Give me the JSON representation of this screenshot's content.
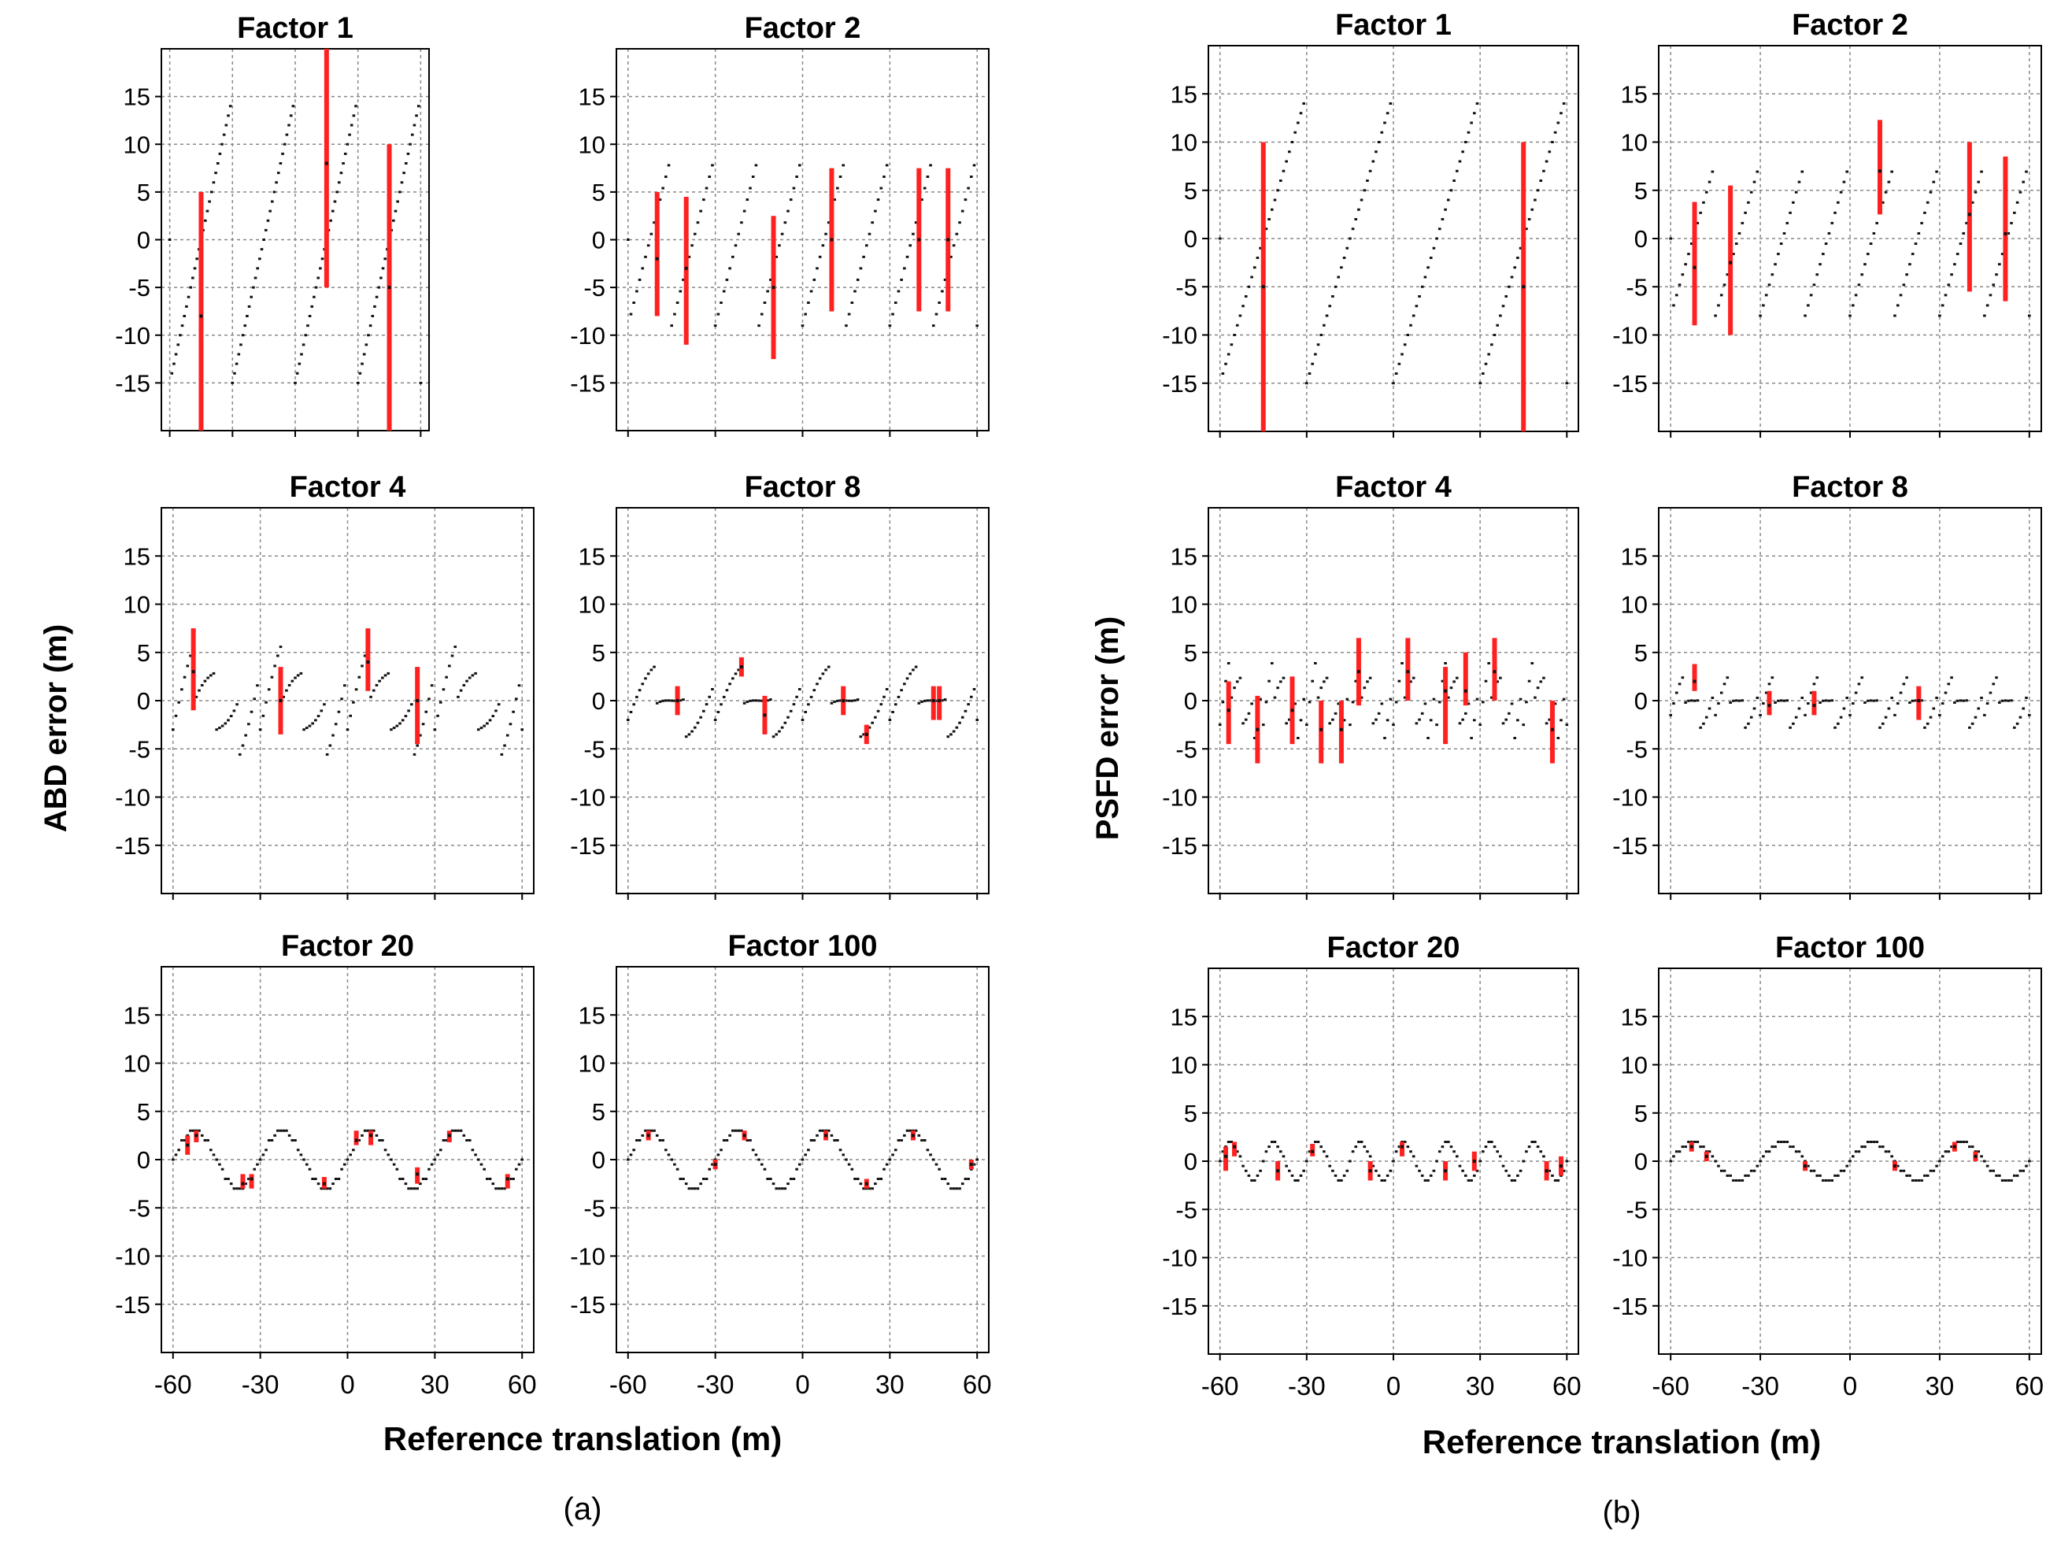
{
  "figure": {
    "panel_labels": [
      "(a)",
      "(b)"
    ],
    "group_ylabels": [
      "ABD error  (m)",
      "PSFD error (m)"
    ],
    "xlabel": "Reference translation (m)",
    "colors": {
      "baseline": "#111111",
      "error_bar": "#ff2020",
      "grid": "#888888",
      "axis": "#000000"
    }
  },
  "chart_data": [
    {
      "id": "a-f1",
      "group": "a",
      "type": "scatter",
      "title": "Factor   1",
      "factor": 1,
      "amplitude": 15,
      "period": 30,
      "phase": 0,
      "xlim": [
        -64,
        64
      ],
      "ylim": [
        -20,
        20
      ],
      "xticks": [
        -60,
        -30,
        0,
        30,
        60
      ],
      "yticks": [
        15,
        10,
        5,
        0,
        -5,
        -10,
        -15
      ],
      "error_bars": [
        {
          "x": -45,
          "y": -8,
          "low": -20,
          "high": 5
        },
        {
          "x": 15,
          "y": 8,
          "low": -5,
          "high": 20
        },
        {
          "x": 45,
          "y": -5,
          "low": -20,
          "high": 10
        }
      ]
    },
    {
      "id": "a-f2",
      "group": "a",
      "type": "scatter",
      "title": "Factor   2",
      "factor": 2,
      "amplitude": 9,
      "period": 15,
      "phase": 0,
      "xlim": [
        -64,
        64
      ],
      "ylim": [
        -20,
        20
      ],
      "xticks": [
        -60,
        -30,
        0,
        30,
        60
      ],
      "yticks": [
        15,
        10,
        5,
        0,
        -5,
        -10,
        -15
      ],
      "error_bars": [
        {
          "x": -50,
          "y": -2,
          "low": -8,
          "high": 5
        },
        {
          "x": -40,
          "y": -3,
          "low": -11,
          "high": 4.5
        },
        {
          "x": -10,
          "y": -5,
          "low": -12.5,
          "high": 2.5
        },
        {
          "x": 10,
          "y": 0,
          "low": -7.5,
          "high": 7.5
        },
        {
          "x": 40,
          "y": 0,
          "low": -7.5,
          "high": 7.5
        },
        {
          "x": 50,
          "y": 0,
          "low": -7.5,
          "high": 7.5
        }
      ]
    },
    {
      "id": "a-f4",
      "group": "a",
      "type": "scatter",
      "title": "Factor   4",
      "factor": 4,
      "amplitude": 6,
      "period": 30,
      "phase": 0,
      "xlim": [
        -64,
        64
      ],
      "ylim": [
        -20,
        20
      ],
      "xticks": [
        -60,
        -30,
        0,
        30,
        60
      ],
      "yticks": [
        15,
        10,
        5,
        0,
        -5,
        -10,
        -15
      ],
      "error_bars": [
        {
          "x": -53,
          "y": 3,
          "low": -1,
          "high": 7.5
        },
        {
          "x": -23,
          "y": 0,
          "low": -3.5,
          "high": 3.5
        },
        {
          "x": 7,
          "y": 4,
          "low": 1,
          "high": 7.5
        },
        {
          "x": 24,
          "y": 0,
          "low": -4.5,
          "high": 3.5
        }
      ]
    },
    {
      "id": "a-f8",
      "group": "a",
      "type": "scatter",
      "title": "Factor   8",
      "factor": 8,
      "amplitude": 4,
      "period": 30,
      "phase": 0,
      "xlim": [
        -64,
        64
      ],
      "ylim": [
        -20,
        20
      ],
      "xticks": [
        -60,
        -30,
        0,
        30,
        60
      ],
      "yticks": [
        15,
        10,
        5,
        0,
        -5,
        -10,
        -15
      ],
      "error_bars": [
        {
          "x": -43,
          "y": 0,
          "low": -1.5,
          "high": 1.5
        },
        {
          "x": -21,
          "y": 3.5,
          "low": 2.5,
          "high": 4.5
        },
        {
          "x": -13,
          "y": -1.5,
          "low": -3.5,
          "high": 0.5
        },
        {
          "x": 14,
          "y": 0,
          "low": -1.5,
          "high": 1.5
        },
        {
          "x": 22,
          "y": -3.5,
          "low": -4.5,
          "high": -2.5
        },
        {
          "x": 45,
          "y": 0,
          "low": -2,
          "high": 1.5
        },
        {
          "x": 47,
          "y": 0,
          "low": -2,
          "high": 1.5
        }
      ]
    },
    {
      "id": "a-f20",
      "group": "a",
      "type": "scatter",
      "title": "Factor  20",
      "factor": 20,
      "amplitude": 3,
      "period": 30,
      "phase": 0,
      "xlim": [
        -64,
        64
      ],
      "ylim": [
        -20,
        20
      ],
      "xticks": [
        -60,
        -30,
        0,
        30,
        60
      ],
      "yticks": [
        15,
        10,
        5,
        0,
        -5,
        -10,
        -15
      ],
      "error_bars": [
        {
          "x": -55,
          "y": 1.5,
          "low": 0.5,
          "high": 2.5
        },
        {
          "x": -52,
          "y": 2.5,
          "low": 1.8,
          "high": 3
        },
        {
          "x": -36,
          "y": -2.5,
          "low": -3,
          "high": -1.5
        },
        {
          "x": -33,
          "y": -2,
          "low": -3,
          "high": -1.5
        },
        {
          "x": -8,
          "y": -2.5,
          "low": -3,
          "high": -1.8
        },
        {
          "x": 3,
          "y": 2,
          "low": 1.5,
          "high": 3
        },
        {
          "x": 8,
          "y": 2.5,
          "low": 1.5,
          "high": 3
        },
        {
          "x": 24,
          "y": -1.5,
          "low": -2.5,
          "high": -0.8
        },
        {
          "x": 35,
          "y": 2.5,
          "low": 1.8,
          "high": 3
        },
        {
          "x": 55,
          "y": -2,
          "low": -3,
          "high": -1.5
        }
      ]
    },
    {
      "id": "a-f100",
      "group": "a",
      "type": "scatter",
      "title": "Factor 100",
      "factor": 100,
      "amplitude": 3,
      "period": 30,
      "phase": 0,
      "xlim": [
        -64,
        64
      ],
      "ylim": [
        -20,
        20
      ],
      "xticks": [
        -60,
        -30,
        0,
        30,
        60
      ],
      "yticks": [
        15,
        10,
        5,
        0,
        -5,
        -10,
        -15
      ],
      "error_bars": [
        {
          "x": -53,
          "y": 2.5,
          "low": 2,
          "high": 3
        },
        {
          "x": -30,
          "y": -0.5,
          "low": -1,
          "high": 0
        },
        {
          "x": -20,
          "y": 2.5,
          "low": 2,
          "high": 3
        },
        {
          "x": 8,
          "y": 2.5,
          "low": 2,
          "high": 3
        },
        {
          "x": 22,
          "y": -2.5,
          "low": -3,
          "high": -2
        },
        {
          "x": 38,
          "y": 2.5,
          "low": 2,
          "high": 3
        },
        {
          "x": 58,
          "y": -0.5,
          "low": -1,
          "high": 0
        }
      ]
    },
    {
      "id": "b-f1",
      "group": "b",
      "type": "scatter",
      "title": "Factor   1",
      "factor": 1,
      "amplitude": 15,
      "period": 30,
      "phase": 0,
      "xlim": [
        -64,
        64
      ],
      "ylim": [
        -20,
        20
      ],
      "xticks": [
        -60,
        -30,
        0,
        30,
        60
      ],
      "yticks": [
        15,
        10,
        5,
        0,
        -5,
        -10,
        -15
      ],
      "error_bars": [
        {
          "x": -45,
          "y": -5,
          "low": -20,
          "high": 10
        },
        {
          "x": 45,
          "y": -5,
          "low": -20,
          "high": 10
        }
      ]
    },
    {
      "id": "b-f2",
      "group": "b",
      "type": "scatter",
      "title": "Factor   2",
      "factor": 2,
      "amplitude": 8,
      "period": 15,
      "phase": 0,
      "xlim": [
        -64,
        64
      ],
      "ylim": [
        -20,
        20
      ],
      "xticks": [
        -60,
        -30,
        0,
        30,
        60
      ],
      "yticks": [
        15,
        10,
        5,
        0,
        -5,
        -10,
        -15
      ],
      "error_bars": [
        {
          "x": -52,
          "y": -3,
          "low": -9,
          "high": 3.8
        },
        {
          "x": -40,
          "y": -2.5,
          "low": -10,
          "high": 5.5
        },
        {
          "x": 10,
          "y": 7,
          "low": 2.5,
          "high": 12.3
        },
        {
          "x": 40,
          "y": 2.5,
          "low": -5.5,
          "high": 10
        },
        {
          "x": 52,
          "y": 0.5,
          "low": -6.5,
          "high": 8.5
        }
      ]
    },
    {
      "id": "b-f4",
      "group": "b",
      "type": "scatter",
      "title": "Factor   4",
      "factor": 4,
      "amplitude": 5,
      "period": 15,
      "phase": 0,
      "xlim": [
        -64,
        64
      ],
      "ylim": [
        -20,
        20
      ],
      "xticks": [
        -60,
        -30,
        0,
        30,
        60
      ],
      "yticks": [
        15,
        10,
        5,
        0,
        -5,
        -10,
        -15
      ],
      "error_bars": [
        {
          "x": -57,
          "y": -1,
          "low": -4.5,
          "high": 2
        },
        {
          "x": -47,
          "y": -3,
          "low": -6.5,
          "high": 0.5
        },
        {
          "x": -35,
          "y": -1,
          "low": -4.5,
          "high": 2.5
        },
        {
          "x": -25,
          "y": -3,
          "low": -6.5,
          "high": 0
        },
        {
          "x": -18,
          "y": -3,
          "low": -6.5,
          "high": 0
        },
        {
          "x": -12,
          "y": 3,
          "low": -0.5,
          "high": 6.5
        },
        {
          "x": 5,
          "y": 3,
          "low": 0,
          "high": 6.5
        },
        {
          "x": 18,
          "y": 1,
          "low": -4.5,
          "high": 3.5
        },
        {
          "x": 25,
          "y": 1,
          "low": -0.5,
          "high": 5
        },
        {
          "x": 35,
          "y": 3,
          "low": 0,
          "high": 6.5
        },
        {
          "x": 55,
          "y": -3,
          "low": -6.5,
          "high": 0
        }
      ]
    },
    {
      "id": "b-f8",
      "group": "b",
      "type": "scatter",
      "title": "Factor   8",
      "factor": 8,
      "amplitude": 3,
      "period": 15,
      "phase": 0,
      "xlim": [
        -64,
        64
      ],
      "ylim": [
        -20,
        20
      ],
      "xticks": [
        -60,
        -30,
        0,
        30,
        60
      ],
      "yticks": [
        15,
        10,
        5,
        0,
        -5,
        -10,
        -15
      ],
      "error_bars": [
        {
          "x": -52,
          "y": 2,
          "low": 1,
          "high": 3.8
        },
        {
          "x": -27,
          "y": -0.5,
          "low": -1.5,
          "high": 1
        },
        {
          "x": -12,
          "y": -0.5,
          "low": -1.5,
          "high": 1
        },
        {
          "x": 23,
          "y": 0,
          "low": -2,
          "high": 1.5
        }
      ]
    },
    {
      "id": "b-f20",
      "group": "b",
      "type": "scatter",
      "title": "Factor  20",
      "factor": 20,
      "amplitude": 2,
      "period": 15,
      "phase": 0,
      "xlim": [
        -64,
        64
      ],
      "ylim": [
        -20,
        20
      ],
      "xticks": [
        -60,
        -30,
        0,
        30,
        60
      ],
      "yticks": [
        15,
        10,
        5,
        0,
        -5,
        -10,
        -15
      ],
      "error_bars": [
        {
          "x": -58,
          "y": 0.5,
          "low": -1,
          "high": 1.5
        },
        {
          "x": -55,
          "y": 1.5,
          "low": 0.5,
          "high": 2
        },
        {
          "x": -40,
          "y": -1,
          "low": -2,
          "high": 0
        },
        {
          "x": -28,
          "y": 1,
          "low": 0.5,
          "high": 1.8
        },
        {
          "x": -8,
          "y": -1,
          "low": -2,
          "high": 0
        },
        {
          "x": 3,
          "y": 1.5,
          "low": 0.5,
          "high": 2
        },
        {
          "x": 18,
          "y": -1,
          "low": -2,
          "high": 0
        },
        {
          "x": 28,
          "y": 0,
          "low": -1,
          "high": 1
        },
        {
          "x": 53,
          "y": -1,
          "low": -2,
          "high": 0
        },
        {
          "x": 58,
          "y": -0.5,
          "low": -1.5,
          "high": 0.5
        }
      ]
    },
    {
      "id": "b-f100",
      "group": "b",
      "type": "scatter",
      "title": "Factor 100",
      "factor": 100,
      "amplitude": 2,
      "period": 30,
      "phase": 0,
      "xlim": [
        -64,
        64
      ],
      "ylim": [
        -20,
        20
      ],
      "xticks": [
        -60,
        -30,
        0,
        30,
        60
      ],
      "yticks": [
        15,
        10,
        5,
        0,
        -5,
        -10,
        -15
      ],
      "error_bars": [
        {
          "x": -53,
          "y": 1.5,
          "low": 1,
          "high": 2
        },
        {
          "x": -48,
          "y": 0.5,
          "low": 0,
          "high": 1
        },
        {
          "x": -15,
          "y": -0.5,
          "low": -1,
          "high": 0
        },
        {
          "x": 15,
          "y": -0.5,
          "low": -1,
          "high": 0
        },
        {
          "x": 35,
          "y": 1.5,
          "low": 1,
          "high": 2
        },
        {
          "x": 42,
          "y": 0.5,
          "low": 0,
          "high": 1
        }
      ]
    }
  ]
}
